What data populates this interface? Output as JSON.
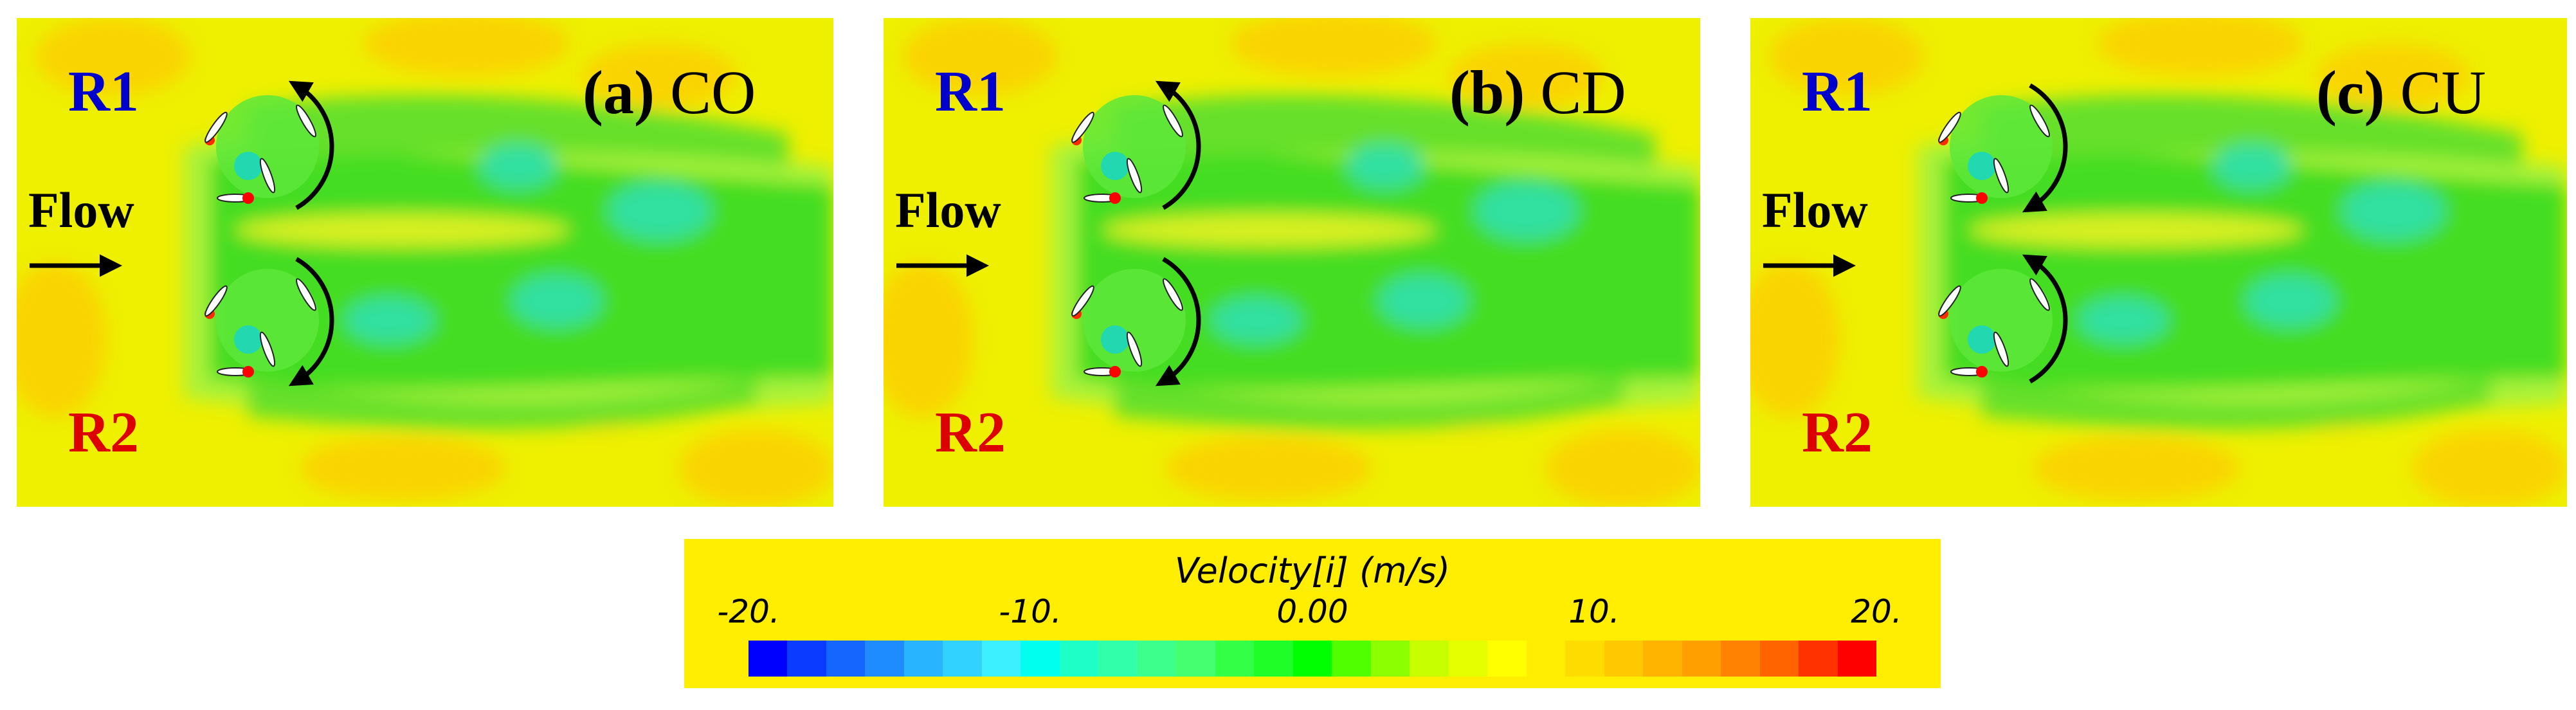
{
  "panels": [
    {
      "id": "a",
      "title_letter": "(a)",
      "title_case": "CO",
      "rotor_top": "R1",
      "rotor_bottom": "R2",
      "flow_label": "Flow",
      "r1_rotation": "counter-clockwise",
      "r2_rotation": "clockwise"
    },
    {
      "id": "b",
      "title_letter": "(b)",
      "title_case": "CD",
      "rotor_top": "R1",
      "rotor_bottom": "R2",
      "flow_label": "Flow",
      "r1_rotation": "counter-clockwise",
      "r2_rotation": "clockwise"
    },
    {
      "id": "c",
      "title_letter": "(c)",
      "title_case": "CU",
      "rotor_top": "R1",
      "rotor_bottom": "R2",
      "flow_label": "Flow",
      "r1_rotation": "clockwise",
      "r2_rotation": "counter-clockwise"
    }
  ],
  "legend": {
    "title": "Velocity[i] (m/s)",
    "ticks": [
      "-20.",
      "-10.",
      "0.00",
      "10.",
      "20."
    ],
    "tick_values": [
      -20,
      -10,
      0,
      10,
      20
    ],
    "range": [
      -20,
      20
    ],
    "colors": [
      "#0000ff",
      "#0a3cff",
      "#1466ff",
      "#1e8cff",
      "#28b4ff",
      "#32d2ff",
      "#3cf0ff",
      "#00ffee",
      "#1effc8",
      "#32ffaa",
      "#3cff8c",
      "#46ff6e",
      "#32ff46",
      "#1eff28",
      "#00ff00",
      "#50ff00",
      "#8cff00",
      "#c8ff00",
      "#e6ff00",
      "#ffff00",
      "#ffee00",
      "#ffdc00",
      "#ffc800",
      "#ffb400",
      "#ffa000",
      "#ff8200",
      "#ff6400",
      "#ff3200",
      "#ff0000"
    ]
  },
  "colors": {
    "r1": "#0000cc",
    "r2": "#dd0000",
    "background_yellow": "#eef000",
    "wake_green": "#44dd22"
  }
}
